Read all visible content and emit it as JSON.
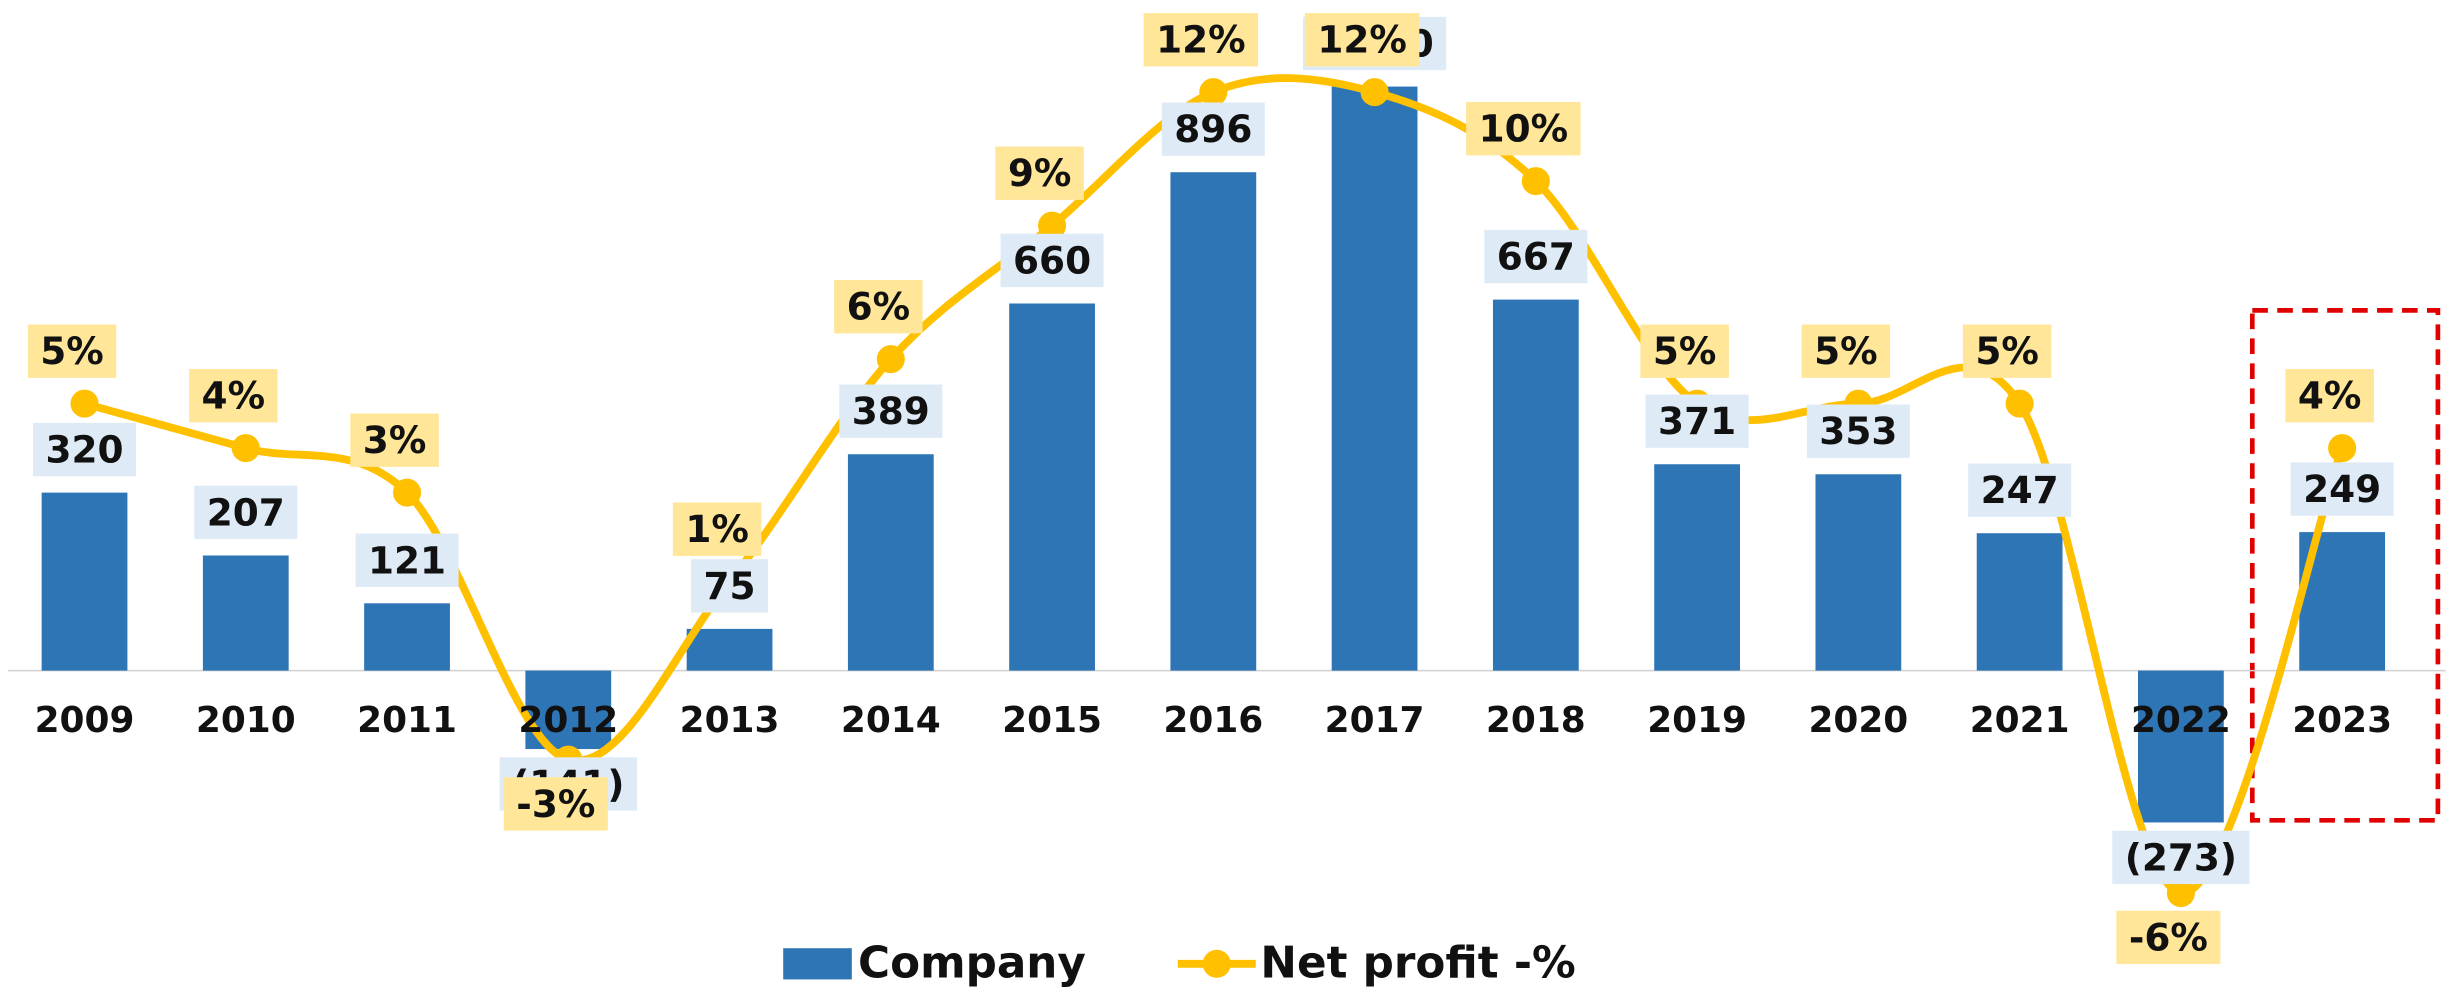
{
  "chart_data": {
    "type": "bar+line",
    "categories": [
      "2009",
      "2010",
      "2011",
      "2012",
      "2013",
      "2014",
      "2015",
      "2016",
      "2017",
      "2018",
      "2019",
      "2020",
      "2021",
      "2022",
      "2023"
    ],
    "series": [
      {
        "name": "Company",
        "type": "bar",
        "color": "#2e75b6",
        "values": [
          320,
          207,
          121,
          -141,
          75,
          389,
          660,
          896,
          1050,
          667,
          371,
          353,
          247,
          -273,
          249
        ],
        "value_labels": [
          "320",
          "207",
          "121",
          "(141)",
          "75",
          "389",
          "660",
          "896",
          "1,050",
          "667",
          "371",
          "353",
          "247",
          "(273)",
          "249"
        ]
      },
      {
        "name": "Net profit -%",
        "type": "line",
        "axis": "y2",
        "color": "#ffc000",
        "values": [
          5,
          4,
          3,
          -3,
          1,
          6,
          9,
          12,
          12,
          10,
          5,
          5,
          5,
          -6,
          4
        ],
        "value_labels": [
          "5%",
          "4%",
          "3%",
          "-3%",
          "1%",
          "6%",
          "9%",
          "12%",
          "12%",
          "10%",
          "5%",
          "5%",
          "5%",
          "-6%",
          "4%"
        ]
      }
    ],
    "ylim": [
      -600,
      1200
    ],
    "y2lim": [
      -8.5,
      14
    ],
    "legend": "bottom"
  }
}
